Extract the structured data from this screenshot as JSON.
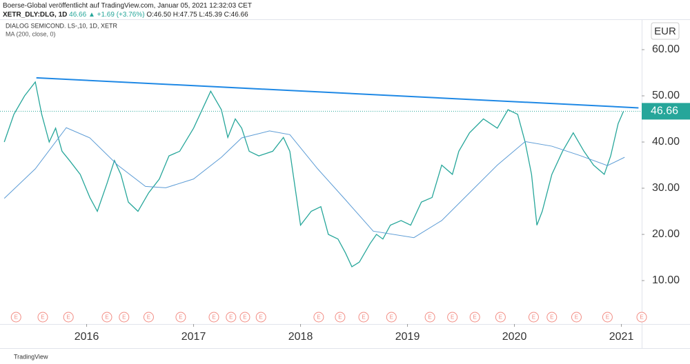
{
  "header": {
    "publisher": "Boerse-Global veröffentlicht auf TradingView.com, Januar 05, 2021 12:32:03 CET",
    "symbol": "XETR_DLY:DLG, 1D",
    "price": "46.66",
    "change": "▲ +1.69 (+3.76%)",
    "ohlc": "O:46.50 H:47.75 L:45.39 C:46.66"
  },
  "footer": "TradingView",
  "chart_data": {
    "type": "line",
    "legend": [
      "DIALOG SEMICOND. LS-,10, 1D, XETR",
      "MA (200, close, 0)"
    ],
    "currency": "EUR",
    "xlim": [
      2015.19,
      2021.19
    ],
    "xticks": [
      2016,
      2017,
      2018,
      2019,
      2020,
      2021
    ],
    "ylim": [
      0.6,
      66.57
    ],
    "yticks": [
      {
        "value": 10,
        "label": "10.00"
      },
      {
        "value": 20,
        "label": "20.00"
      },
      {
        "value": 30,
        "label": "30.00"
      },
      {
        "value": 40,
        "label": "40.00"
      },
      {
        "value": 50,
        "label": "50.00"
      },
      {
        "value": 60,
        "label": "60.00"
      }
    ],
    "grid": false,
    "last_price": 46.66,
    "last_price_color": "#26a69a",
    "series": [
      {
        "name": "DIALOG SEMICOND. LS-,10, 1D, XETR",
        "color": "#26a69a",
        "x": [
          2015.23,
          2015.32,
          2015.42,
          2015.52,
          2015.58,
          2015.65,
          2015.71,
          2015.77,
          2015.84,
          2015.94,
          2016.03,
          2016.1,
          2016.19,
          2016.26,
          2016.32,
          2016.39,
          2016.48,
          2016.58,
          2016.68,
          2016.77,
          2016.87,
          2017.0,
          2017.1,
          2017.16,
          2017.26,
          2017.32,
          2017.39,
          2017.45,
          2017.52,
          2017.61,
          2017.74,
          2017.84,
          2017.9,
          2017.95,
          2018.0,
          2018.1,
          2018.19,
          2018.26,
          2018.35,
          2018.42,
          2018.48,
          2018.55,
          2018.65,
          2018.71,
          2018.77,
          2018.84,
          2018.94,
          2019.03,
          2019.13,
          2019.23,
          2019.32,
          2019.42,
          2019.48,
          2019.58,
          2019.71,
          2019.84,
          2019.94,
          2020.03,
          2020.1,
          2020.16,
          2020.21,
          2020.26,
          2020.35,
          2020.45,
          2020.55,
          2020.65,
          2020.74,
          2020.84,
          2020.9,
          2020.97,
          2021.02
        ],
        "values": [
          40,
          46,
          50,
          53,
          46,
          40,
          43,
          38,
          36,
          33,
          28,
          25,
          31,
          36,
          33,
          27,
          25,
          29,
          32,
          37,
          38,
          43,
          48,
          51,
          47,
          41,
          45,
          43,
          38,
          37,
          38,
          41,
          38,
          30,
          22,
          25,
          26,
          20,
          19,
          16,
          13,
          14,
          18,
          20,
          19,
          22,
          23,
          22,
          27,
          28,
          35,
          33,
          38,
          42,
          45,
          43,
          47,
          46,
          40,
          33,
          22,
          25,
          33,
          38,
          42,
          38,
          35,
          33,
          37,
          44,
          46.66
        ]
      },
      {
        "name": "MA (200, close, 0)",
        "color": "#5b9bd5",
        "x": [
          2015.23,
          2015.52,
          2015.81,
          2016.03,
          2016.29,
          2016.55,
          2016.74,
          2017.0,
          2017.26,
          2017.45,
          2017.71,
          2017.9,
          2018.16,
          2018.42,
          2018.68,
          2019.06,
          2019.32,
          2019.58,
          2019.84,
          2020.1,
          2020.35,
          2020.61,
          2020.87,
          2021.03
        ],
        "values": [
          27.8,
          34.2,
          43.1,
          40.9,
          35,
          30.4,
          30.1,
          32,
          36.7,
          40.9,
          42.4,
          41.6,
          34.2,
          27.5,
          20.7,
          19.3,
          23,
          29,
          35,
          40.1,
          39.1,
          37.1,
          34.9,
          36.7
        ]
      }
    ],
    "trendline": {
      "color": "#1e88e5",
      "x": [
        2015.53,
        2021.16
      ],
      "values": [
        53.9,
        47.4
      ]
    },
    "earnings_markers": {
      "label": "E",
      "color": "#f28b82",
      "x": [
        2015.34,
        2015.59,
        2015.83,
        2016.19,
        2016.35,
        2016.58,
        2016.88,
        2017.19,
        2017.35,
        2017.48,
        2017.63,
        2018.17,
        2018.37,
        2018.59,
        2018.85,
        2019.21,
        2019.42,
        2019.63,
        2019.87,
        2020.18,
        2020.35,
        2020.58,
        2020.87,
        2021.19
      ]
    }
  }
}
